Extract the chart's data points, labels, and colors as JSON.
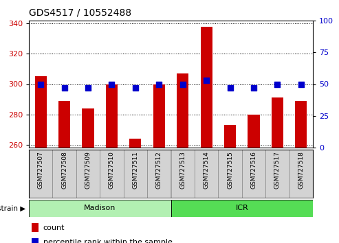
{
  "title": "GDS4517 / 10552488",
  "samples": [
    "GSM727507",
    "GSM727508",
    "GSM727509",
    "GSM727510",
    "GSM727511",
    "GSM727512",
    "GSM727513",
    "GSM727514",
    "GSM727515",
    "GSM727516",
    "GSM727517",
    "GSM727518"
  ],
  "counts": [
    305,
    289,
    284,
    300,
    264,
    300,
    307,
    338,
    273,
    280,
    291,
    289
  ],
  "percentiles": [
    50,
    47,
    47,
    50,
    47,
    50,
    50,
    53,
    47,
    47,
    50,
    50
  ],
  "ylim_left": [
    258,
    342
  ],
  "ylim_right": [
    0,
    100
  ],
  "yticks_left": [
    260,
    280,
    300,
    320,
    340
  ],
  "yticks_right": [
    0,
    25,
    50,
    75,
    100
  ],
  "bar_color": "#cc0000",
  "dot_color": "#0000cc",
  "strain_groups": [
    {
      "label": "Madison",
      "start": 0,
      "end": 6,
      "color": "#b2f0b2"
    },
    {
      "label": "ICR",
      "start": 6,
      "end": 12,
      "color": "#55dd55"
    }
  ],
  "strain_label": "strain",
  "legend_count_label": "count",
  "legend_pct_label": "percentile rank within the sample",
  "x_tick_bg": "#d3d3d3",
  "bar_width": 0.5,
  "dot_size": 28
}
